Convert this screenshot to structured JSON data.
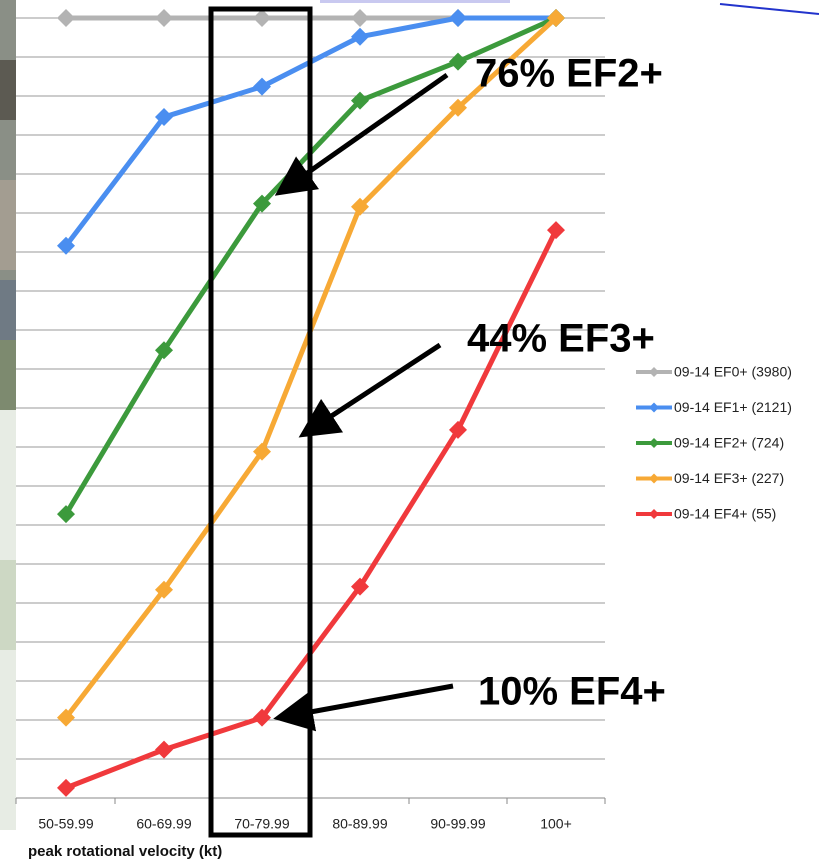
{
  "chart_data": {
    "type": "line",
    "x_label": "peak rotational velocity (kt)",
    "categories": [
      "50-59.99",
      "60-69.99",
      "70-79.99",
      "80-89.99",
      "90-99.99",
      "100+"
    ],
    "series": [
      {
        "name": "09-14 EF0+ (3980)",
        "color": "#b3b3b3",
        "values": [
          100,
          100,
          100,
          100,
          100,
          100
        ]
      },
      {
        "name": "09-14 EF1+ (2121)",
        "color": "#4a8ef0",
        "values": [
          70.8,
          87.3,
          91.2,
          97.6,
          100,
          100
        ]
      },
      {
        "name": "09-14 EF2+ (724)",
        "color": "#3c9a3c",
        "values": [
          36.4,
          57.4,
          76.2,
          89.4,
          94.4,
          100
        ]
      },
      {
        "name": "09-14 EF3+ (227)",
        "color": "#f7a935",
        "values": [
          10.3,
          26.7,
          44.4,
          75.8,
          88.5,
          100
        ]
      },
      {
        "name": "09-14 EF4+ (55)",
        "color": "#f0393c",
        "values": [
          1.3,
          6.2,
          10.3,
          27.1,
          47.2,
          72.8
        ]
      }
    ],
    "ylim": [
      0,
      100
    ],
    "yticks": [
      0,
      5,
      10,
      15,
      20,
      25,
      30,
      35,
      40,
      45,
      50,
      55,
      60,
      65,
      70,
      75,
      80,
      85,
      90,
      95,
      100
    ],
    "grid": true,
    "legend": "right",
    "annotations": [
      {
        "text": "76% EF2+",
        "series": 2,
        "point": 2
      },
      {
        "text": "44% EF3+",
        "series": 3,
        "point": 2
      },
      {
        "text": "10% EF4+",
        "series": 4,
        "point": 2
      }
    ]
  }
}
